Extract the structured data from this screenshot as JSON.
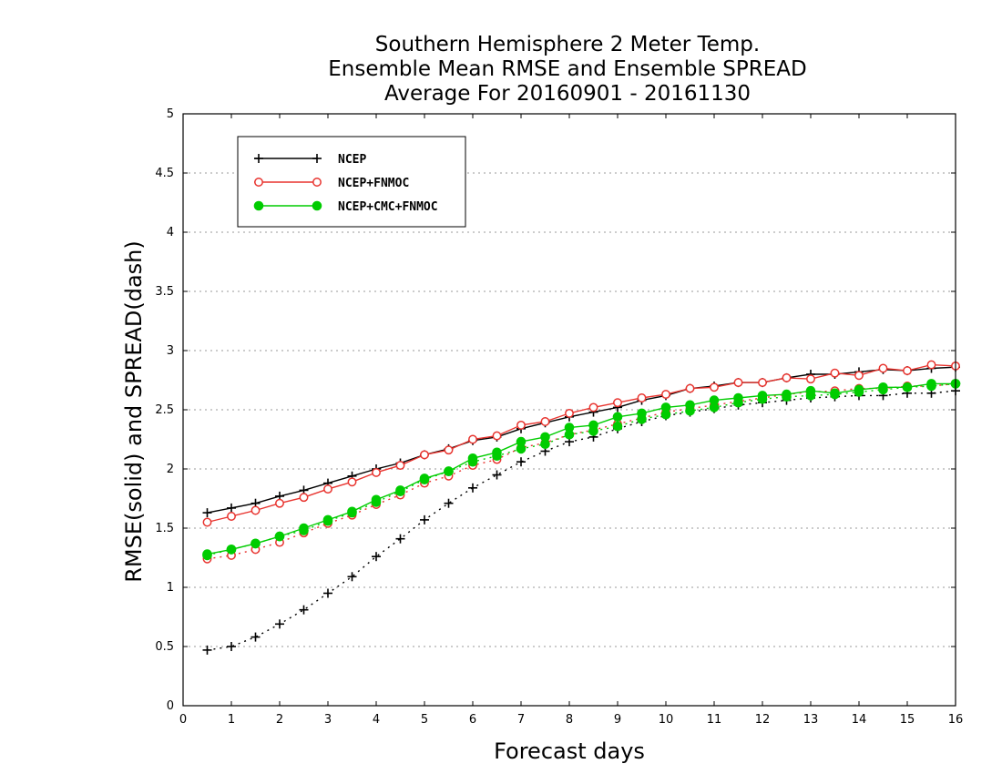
{
  "chart_data": {
    "type": "line",
    "title": [
      "Southern Hemisphere 2 Meter Temp.",
      "Ensemble Mean RMSE and Ensemble SPREAD",
      "Average For 20160901 - 20161130"
    ],
    "xlabel": "Forecast days",
    "ylabel": "RMSE(solid) and SPREAD(dash)",
    "xlim": [
      0,
      16
    ],
    "ylim": [
      0,
      5
    ],
    "xticks": [
      0,
      1,
      2,
      3,
      4,
      5,
      6,
      7,
      8,
      9,
      10,
      11,
      12,
      13,
      14,
      15,
      16
    ],
    "yticks": [
      0,
      0.5,
      1,
      1.5,
      2,
      2.5,
      3,
      3.5,
      4,
      4.5,
      5
    ],
    "grid": "horizontal dotted",
    "legend_position": "top-left",
    "x": [
      0.5,
      1,
      1.5,
      2,
      2.5,
      3,
      3.5,
      4,
      4.5,
      5,
      5.5,
      6,
      6.5,
      7,
      7.5,
      8,
      8.5,
      9,
      9.5,
      10,
      10.5,
      11,
      11.5,
      12,
      12.5,
      13,
      13.5,
      14,
      14.5,
      15,
      15.5,
      16
    ],
    "series": [
      {
        "name": "NCEP",
        "color": "#000000",
        "marker": "plus",
        "rmse": [
          1.63,
          1.67,
          1.71,
          1.77,
          1.82,
          1.88,
          1.94,
          2.0,
          2.05,
          2.12,
          2.17,
          2.24,
          2.27,
          2.34,
          2.39,
          2.44,
          2.48,
          2.52,
          2.58,
          2.62,
          2.68,
          2.7,
          2.73,
          2.73,
          2.77,
          2.8,
          2.8,
          2.82,
          2.84,
          2.83,
          2.85,
          2.86
        ],
        "spread": [
          0.47,
          0.5,
          0.58,
          0.69,
          0.81,
          0.95,
          1.09,
          1.26,
          1.41,
          1.57,
          1.71,
          1.84,
          1.95,
          2.06,
          2.15,
          2.23,
          2.27,
          2.34,
          2.4,
          2.45,
          2.48,
          2.51,
          2.54,
          2.56,
          2.58,
          2.6,
          2.61,
          2.62,
          2.62,
          2.64,
          2.64,
          2.66
        ]
      },
      {
        "name": "NCEP+FNMOC",
        "color": "#e8342f",
        "marker": "open-circle",
        "rmse": [
          1.55,
          1.6,
          1.65,
          1.71,
          1.76,
          1.83,
          1.89,
          1.97,
          2.03,
          2.12,
          2.16,
          2.25,
          2.28,
          2.37,
          2.4,
          2.47,
          2.52,
          2.56,
          2.6,
          2.63,
          2.68,
          2.69,
          2.73,
          2.73,
          2.77,
          2.76,
          2.81,
          2.79,
          2.85,
          2.83,
          2.88,
          2.87
        ],
        "spread": [
          1.24,
          1.27,
          1.32,
          1.38,
          1.46,
          1.54,
          1.61,
          1.7,
          1.78,
          1.88,
          1.94,
          2.03,
          2.08,
          2.18,
          2.22,
          2.29,
          2.33,
          2.38,
          2.43,
          2.48,
          2.51,
          2.54,
          2.57,
          2.6,
          2.63,
          2.65,
          2.66,
          2.68,
          2.68,
          2.7,
          2.7,
          2.72
        ]
      },
      {
        "name": "NCEP+CMC+FNMOC",
        "color": "#00cc00",
        "marker": "filled-circle",
        "rmse": [
          1.28,
          1.32,
          1.37,
          1.43,
          1.5,
          1.57,
          1.64,
          1.74,
          1.82,
          1.92,
          1.98,
          2.09,
          2.14,
          2.23,
          2.27,
          2.35,
          2.37,
          2.44,
          2.47,
          2.52,
          2.54,
          2.58,
          2.6,
          2.62,
          2.63,
          2.66,
          2.64,
          2.67,
          2.69,
          2.69,
          2.72,
          2.72
        ],
        "spread": [
          1.27,
          1.32,
          1.37,
          1.43,
          1.48,
          1.56,
          1.63,
          1.72,
          1.81,
          1.91,
          1.98,
          2.06,
          2.11,
          2.17,
          2.21,
          2.29,
          2.32,
          2.36,
          2.42,
          2.46,
          2.49,
          2.52,
          2.56,
          2.59,
          2.61,
          2.62,
          2.63,
          2.65,
          2.67,
          2.69,
          2.7,
          2.72
        ]
      }
    ]
  }
}
